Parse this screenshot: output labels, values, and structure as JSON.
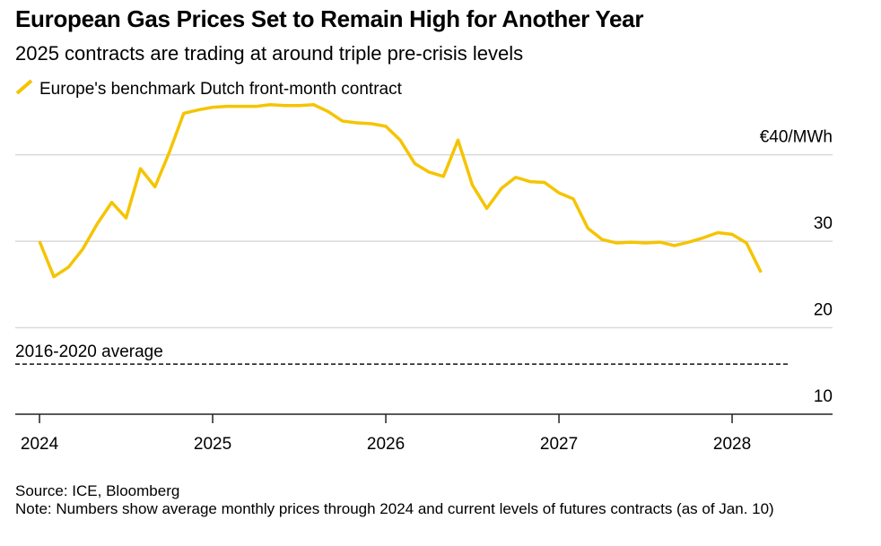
{
  "chart_data": {
    "type": "line",
    "title": "European Gas Prices Set to Remain High for Another Year",
    "subtitle": "2025 contracts are trading at around triple pre-crisis levels",
    "series": [
      {
        "name": "Europe's benchmark Dutch front-month contract",
        "color": "#f5c400",
        "x": [
          2024,
          2024.083,
          2024.167,
          2024.25,
          2024.333,
          2024.417,
          2024.5,
          2024.583,
          2024.667,
          2024.75,
          2024.833,
          2024.917,
          2025,
          2025.083,
          2025.167,
          2025.25,
          2025.333,
          2025.417,
          2025.5,
          2025.583,
          2025.667,
          2025.75,
          2025.833,
          2025.917,
          2026,
          2026.083,
          2026.167,
          2026.25,
          2026.333,
          2026.417,
          2026.5,
          2026.583,
          2026.667,
          2026.75,
          2026.833,
          2026.917,
          2027,
          2027.083,
          2027.167,
          2027.25,
          2027.333,
          2027.417,
          2027.5,
          2027.583,
          2027.667,
          2027.75,
          2027.833,
          2027.917,
          2028,
          2028.083,
          2028.167
        ],
        "values": [
          30.0,
          25.9,
          27.0,
          29.1,
          32.0,
          34.5,
          32.7,
          38.4,
          36.3,
          40.3,
          44.8,
          45.2,
          45.5,
          45.6,
          45.6,
          45.6,
          45.8,
          45.7,
          45.7,
          45.8,
          45.0,
          43.9,
          43.7,
          43.6,
          43.3,
          41.7,
          39.0,
          38.0,
          37.5,
          41.7,
          36.5,
          33.8,
          36.1,
          37.4,
          36.9,
          36.8,
          35.6,
          34.9,
          31.5,
          30.2,
          29.8,
          29.9,
          29.8,
          29.9,
          29.5,
          29.9,
          30.4,
          31.0,
          30.8,
          29.8,
          26.4
        ]
      }
    ],
    "average": {
      "label": "2016-2020 average",
      "value": 15.8
    },
    "xlim": [
      2023.86,
      2028.58
    ],
    "xticks": [
      2024,
      2025,
      2026,
      2027,
      2028
    ],
    "ylim": [
      10,
      46.5
    ],
    "yticks": [
      10,
      20,
      30,
      {
        "value": 40,
        "label": "€40/MWh"
      }
    ],
    "grid": true,
    "source": "Source: ICE, Bloomberg",
    "note": "Note: Numbers show average monthly prices through 2024 and current levels of futures contracts (as of Jan. 10)"
  }
}
